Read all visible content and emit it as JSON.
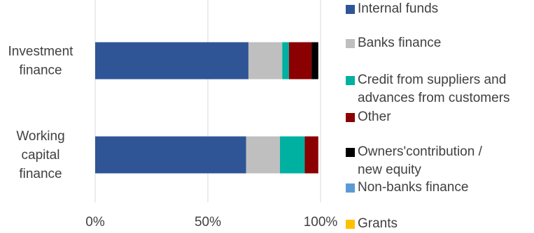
{
  "chart_data": {
    "type": "bar",
    "orientation": "horizontal",
    "stacked": "percent",
    "categories": [
      "Investment finance",
      "Working capital finance"
    ],
    "category_labels": [
      [
        "Investment",
        "finance"
      ],
      [
        "Working",
        "capital",
        "finance"
      ]
    ],
    "series": [
      {
        "name": "Internal funds",
        "color": "#2f5597",
        "values": [
          68,
          67
        ]
      },
      {
        "name": "Banks finance",
        "color": "#bfbfbf",
        "values": [
          15,
          15
        ]
      },
      {
        "name": "Credit from suppliers and advances from customers",
        "color": "#00b0a0",
        "values": [
          3,
          11
        ]
      },
      {
        "name": "Other",
        "color": "#8b0000",
        "values": [
          10,
          6
        ]
      },
      {
        "name": "Owners'contribution / new equity",
        "color": "#000000",
        "values": [
          3,
          0
        ]
      },
      {
        "name": "Non-banks finance",
        "color": "#5b9bd5",
        "values": [
          0,
          0
        ]
      },
      {
        "name": "Grants",
        "color": "#ffc000",
        "values": [
          0,
          0
        ]
      }
    ],
    "x_ticks": [
      "0%",
      "50%",
      "100%"
    ],
    "xlim": [
      0,
      100
    ],
    "legend_position": "right",
    "grid": "vertical"
  },
  "legend": {
    "items": [
      {
        "label": "Internal funds"
      },
      {
        "label": "Banks finance"
      },
      {
        "label": "Credit from suppliers and\nadvances from customers"
      },
      {
        "label": "Other"
      },
      {
        "label": "Owners'contribution /\nnew equity"
      },
      {
        "label": "Non-banks finance"
      },
      {
        "label": "Grants"
      }
    ]
  }
}
